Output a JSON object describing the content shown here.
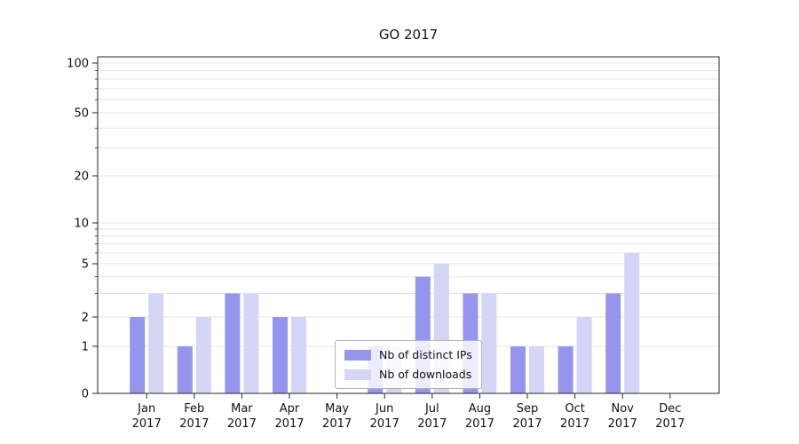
{
  "chart_data": {
    "type": "bar",
    "title": "GO 2017",
    "categories": [
      "Jan 2017",
      "Feb 2017",
      "Mar 2017",
      "Apr 2017",
      "May 2017",
      "Jun 2017",
      "Jul 2017",
      "Aug 2017",
      "Sep 2017",
      "Oct 2017",
      "Nov 2017",
      "Dec 2017"
    ],
    "series": [
      {
        "name": "Nb of distinct IPs",
        "color": "#9595ee",
        "values": [
          2,
          1,
          3,
          2,
          0,
          1,
          4,
          3,
          1,
          1,
          3,
          0
        ]
      },
      {
        "name": "Nb of downloads",
        "color": "#d5d5f6",
        "values": [
          3,
          2,
          3,
          2,
          0,
          1,
          5,
          3,
          1,
          2,
          6,
          0
        ]
      }
    ],
    "yscale": "symlog",
    "yticks": [
      0,
      1,
      2,
      5,
      10,
      20,
      50,
      100
    ],
    "ylim": [
      0,
      100
    ],
    "xlabel": "",
    "ylabel": "",
    "grid": true,
    "grid_axis": "y",
    "legend_position": "lower-center"
  },
  "colors": {
    "gridline": "#e5e5e5",
    "axis": "#262626",
    "text": "#111111"
  }
}
